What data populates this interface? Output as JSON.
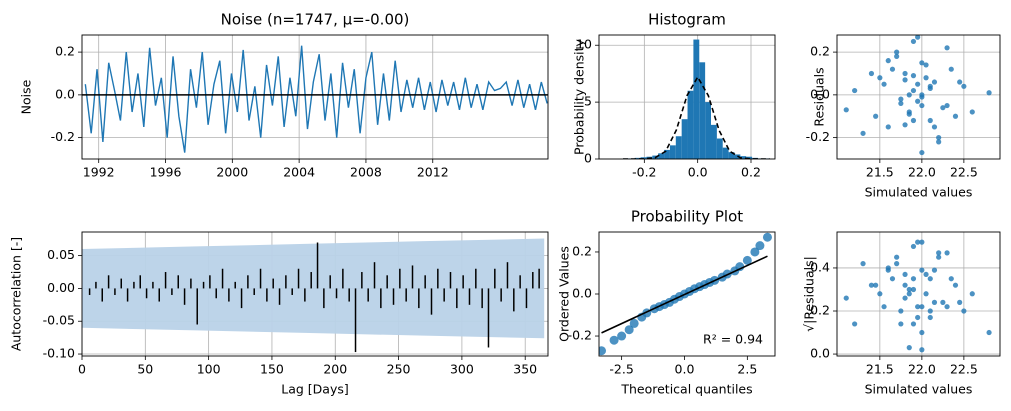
{
  "chart_data": [
    {
      "type": "line",
      "title": "Noise (n=1747, μ=-0.00)",
      "ylabel": "Noise",
      "color": "#1f77b4",
      "grid": true,
      "x": [
        1991.2,
        1991.55,
        1991.9,
        1992.25,
        1992.6,
        1992.95,
        1993.3,
        1993.65,
        1994.0,
        1994.35,
        1994.7,
        1995.05,
        1995.4,
        1995.75,
        1996.1,
        1996.45,
        1996.8,
        1997.15,
        1997.5,
        1997.85,
        1998.2,
        1998.55,
        1998.9,
        1999.25,
        1999.6,
        1999.95,
        2000.3,
        2000.65,
        2001.0,
        2001.35,
        2001.7,
        2002.05,
        2002.4,
        2002.75,
        2003.1,
        2003.45,
        2003.8,
        2004.15,
        2004.5,
        2004.85,
        2005.2,
        2005.55,
        2005.9,
        2006.25,
        2006.6,
        2006.95,
        2007.3,
        2007.65,
        2008.0,
        2008.35,
        2008.7,
        2009.05,
        2009.4,
        2009.75,
        2010.1,
        2010.45,
        2010.8,
        2011.15,
        2011.5,
        2011.85,
        2012.2,
        2012.55,
        2012.9,
        2013.25,
        2013.6,
        2013.95,
        2014.3,
        2014.65,
        2015.0,
        2015.35,
        2015.7,
        2016.05,
        2016.4,
        2016.75,
        2017.1,
        2017.45,
        2017.8,
        2018.15,
        2018.5,
        2018.85
      ],
      "values": [
        0.05,
        -0.18,
        0.12,
        -0.22,
        0.15,
        0.02,
        -0.12,
        0.2,
        -0.08,
        0.1,
        -0.15,
        0.22,
        -0.05,
        0.08,
        -0.2,
        0.18,
        -0.1,
        -0.27,
        0.12,
        -0.06,
        0.2,
        -0.14,
        0.05,
        0.16,
        -0.18,
        0.1,
        -0.08,
        0.21,
        -0.12,
        0.04,
        -0.2,
        0.14,
        -0.05,
        0.18,
        -0.15,
        0.08,
        -0.1,
        0.23,
        -0.16,
        0.06,
        0.19,
        -0.12,
        0.1,
        -0.2,
        0.15,
        -0.06,
        0.12,
        -0.18,
        0.08,
        0.2,
        -0.14,
        0.1,
        -0.12,
        0.16,
        -0.08,
        0.07,
        -0.06,
        0.08,
        -0.07,
        0.06,
        -0.08,
        0.07,
        -0.05,
        0.06,
        -0.07,
        0.08,
        -0.06,
        0.05,
        -0.07,
        0.06,
        0.02,
        0.03,
        0.06,
        -0.05,
        0.07,
        -0.06,
        0.05,
        -0.07,
        0.06,
        -0.04
      ],
      "hline": 0,
      "hline_color": "#000000",
      "xlim": [
        1991,
        2018.9
      ],
      "xticks": [
        1992,
        1996,
        2000,
        2004,
        2008,
        2012
      ],
      "ylim": [
        -0.3,
        0.28
      ],
      "yticks": [
        -0.2,
        {
          "value": 0,
          "label": "0.0"
        },
        0.2
      ]
    },
    {
      "type": "histogram",
      "title": "Histogram",
      "ylabel": "Probability density",
      "color": "#1f77b4",
      "grid": true,
      "bins": [
        -0.28,
        -0.258,
        -0.236,
        -0.214,
        -0.192,
        -0.17,
        -0.148,
        -0.126,
        -0.104,
        -0.082,
        -0.06,
        -0.038,
        -0.016,
        0.006,
        0.028,
        0.05,
        0.072,
        0.094,
        0.116,
        0.138,
        0.16,
        0.182,
        0.204,
        0.226,
        0.248,
        0.27
      ],
      "values": [
        0.05,
        0.05,
        0.1,
        0.15,
        0.2,
        0.3,
        0.5,
        0.8,
        1.2,
        2.0,
        3.5,
        6.0,
        10.5,
        8.5,
        5.0,
        3.0,
        1.8,
        1.0,
        0.6,
        0.4,
        0.25,
        0.2,
        0.1,
        0.05,
        0.05
      ],
      "curve": {
        "color": "#000000",
        "x": [
          -0.28,
          -0.24,
          -0.2,
          -0.16,
          -0.12,
          -0.08,
          -0.04,
          0,
          0.04,
          0.08,
          0.12,
          0.16,
          0.2,
          0.24,
          0.27
        ],
        "values": [
          0.0,
          0.0,
          0.01,
          0.11,
          0.68,
          2.54,
          5.57,
          7.2,
          5.57,
          2.54,
          0.68,
          0.11,
          0.01,
          0.0,
          0.0
        ]
      },
      "xlim": [
        -0.37,
        0.29
      ],
      "xticks": [
        -0.2,
        {
          "value": 0,
          "label": "0.0"
        },
        0.2
      ],
      "ylim": [
        0,
        10.9
      ],
      "yticks": [
        0,
        5,
        10
      ]
    },
    {
      "type": "scatter",
      "xlabel": "Simulated values",
      "ylabel": "Residuals",
      "color": "#1f77b4",
      "grid": true,
      "x": [
        21.9,
        22.0,
        21.8,
        22.1,
        21.7,
        22.2,
        21.95,
        21.85,
        22.05,
        21.6,
        22.3,
        21.5,
        22.4,
        21.75,
        22.15,
        21.9,
        22.0,
        21.65,
        22.25,
        21.4,
        22.5,
        21.3,
        22.6,
        21.2,
        22.8,
        21.1,
        21.85,
        22.1,
        21.95,
        22.0,
        21.8,
        22.05,
        21.7,
        22.2,
        21.9,
        22.35,
        21.55,
        21.45,
        22.45,
        22.0,
        21.75,
        22.1,
        21.9,
        21.85,
        22.15,
        21.6,
        22.3,
        21.95,
        22.0,
        21.8
      ],
      "values": [
        0.02,
        -0.05,
        0.1,
        -0.12,
        0.18,
        -0.2,
        0.05,
        -0.08,
        0.14,
        -0.15,
        0.22,
        0.08,
        -0.1,
        -0.02,
        0.06,
        0.25,
        -0.27,
        0.12,
        -0.06,
        0.1,
        0.04,
        -0.18,
        -0.08,
        0.02,
        0.01,
        -0.07,
        0.0,
        0.03,
        -0.03,
        0.15,
        -0.14,
        0.08,
        0.2,
        -0.22,
        -0.12,
        0.12,
        0.05,
        -0.1,
        0.06,
        0.0,
        -0.04,
        0.04,
        0.09,
        -0.09,
        -0.15,
        0.16,
        -0.05,
        0.27,
        -0.01,
        0.07
      ],
      "xlim": [
        20.99,
        22.93
      ],
      "xticks": [
        21.5,
        {
          "value": 22,
          "label": "22.0"
        },
        22.5
      ],
      "ylim": [
        -0.3,
        0.28
      ],
      "yticks": [
        -0.2,
        {
          "value": 0,
          "label": "0.0"
        },
        0.2
      ]
    },
    {
      "type": "bar",
      "xlabel": "Lag [Days]",
      "ylabel": "Autocorrelation [-]",
      "color": "#000000",
      "grid": true,
      "band": {
        "color": "#b9d2e8",
        "x": [
          0,
          90,
          180,
          270,
          365
        ],
        "upper": [
          0.06,
          0.064,
          0.068,
          0.072,
          0.076
        ],
        "lower": [
          -0.06,
          -0.064,
          -0.068,
          -0.072,
          -0.076
        ]
      },
      "x": [
        1,
        6,
        11,
        16,
        21,
        26,
        31,
        36,
        41,
        46,
        51,
        56,
        61,
        66,
        71,
        76,
        81,
        86,
        91,
        96,
        101,
        106,
        111,
        116,
        121,
        126,
        131,
        136,
        141,
        146,
        151,
        156,
        161,
        166,
        171,
        176,
        181,
        186,
        191,
        196,
        201,
        206,
        211,
        216,
        221,
        226,
        231,
        236,
        241,
        246,
        251,
        256,
        261,
        266,
        271,
        276,
        281,
        286,
        291,
        296,
        301,
        306,
        311,
        316,
        321,
        326,
        331,
        336,
        341,
        346,
        351,
        356,
        361
      ],
      "values": [
        0.0,
        -0.01,
        0.01,
        -0.02,
        0.02,
        -0.01,
        0.015,
        -0.02,
        0.01,
        0.02,
        -0.015,
        0.01,
        -0.02,
        0.025,
        -0.01,
        0.02,
        -0.025,
        0.015,
        -0.055,
        0.01,
        0.02,
        -0.015,
        0.03,
        -0.02,
        0.01,
        -0.03,
        0.02,
        -0.01,
        0.03,
        -0.02,
        0.015,
        -0.025,
        0.02,
        -0.01,
        0.03,
        -0.02,
        0.025,
        0.07,
        -0.03,
        0.02,
        -0.015,
        0.03,
        -0.02,
        -0.097,
        0.025,
        -0.02,
        0.04,
        -0.03,
        0.02,
        -0.025,
        0.03,
        -0.02,
        0.035,
        -0.03,
        0.02,
        -0.04,
        0.03,
        -0.02,
        0.025,
        -0.03,
        0.02,
        -0.025,
        0.03,
        -0.03,
        -0.09,
        0.03,
        -0.02,
        0.04,
        -0.035,
        0.02,
        -0.03,
        0.025,
        0.03
      ],
      "xlim": [
        0,
        368
      ],
      "xticks": [
        0,
        50,
        100,
        150,
        200,
        250,
        300,
        350
      ],
      "ylim": [
        -0.103,
        0.086
      ],
      "yticks": [
        {
          "value": -0.1,
          "label": "-0.10"
        },
        -0.05,
        {
          "value": 0,
          "label": "0.00"
        },
        0.05
      ]
    },
    {
      "type": "scatter",
      "title": "Probability Plot",
      "xlabel": "Theoretical quantiles",
      "ylabel": "Ordered Values",
      "color": "#1f77b4",
      "grid": false,
      "marker_size": 4.5,
      "annotation": "R² = 0.94",
      "x": [
        -3.3,
        -2.8,
        -2.5,
        -2.2,
        -2.0,
        -1.7,
        -1.5,
        -1.2,
        -1.0,
        -0.8,
        -0.6,
        -0.4,
        -0.2,
        0,
        0.2,
        0.4,
        0.6,
        0.8,
        1.0,
        1.2,
        1.5,
        1.7,
        2.0,
        2.2,
        2.5,
        2.8,
        3.0,
        3.3
      ],
      "values": [
        -0.27,
        -0.22,
        -0.2,
        -0.17,
        -0.14,
        -0.11,
        -0.09,
        -0.07,
        -0.06,
        -0.05,
        -0.04,
        -0.025,
        -0.012,
        0.0,
        0.012,
        0.025,
        0.035,
        0.045,
        0.055,
        0.065,
        0.08,
        0.095,
        0.11,
        0.13,
        0.16,
        0.2,
        0.23,
        0.27
      ],
      "fit": {
        "color": "#000000",
        "x": [
          -3.3,
          3.3
        ],
        "values": [
          -0.185,
          0.18
        ]
      },
      "xlim": [
        -3.4,
        3.6
      ],
      "xticks": [
        -2.5,
        {
          "value": 0,
          "label": "0.0"
        },
        2.5
      ],
      "ylim": [
        -0.295,
        0.295
      ],
      "yticks": [
        -0.2,
        {
          "value": 0,
          "label": "0.0"
        },
        0.2
      ]
    },
    {
      "type": "scatter",
      "xlabel": "Simulated values",
      "ylabel": "√|Residuals|",
      "color": "#1f77b4",
      "grid": true,
      "x": [
        21.9,
        22.0,
        21.8,
        22.1,
        21.7,
        22.2,
        21.95,
        21.85,
        22.05,
        21.6,
        22.3,
        21.5,
        22.4,
        21.75,
        22.15,
        21.9,
        22.0,
        21.65,
        22.25,
        21.4,
        22.5,
        21.3,
        22.6,
        21.2,
        22.8,
        21.1,
        21.85,
        22.1,
        21.95,
        22.0,
        21.8,
        22.05,
        21.7,
        22.2,
        21.9,
        22.35,
        21.55,
        21.45,
        22.45,
        22.0,
        21.75,
        22.1,
        21.9,
        21.85,
        22.15,
        21.6,
        22.3,
        21.95,
        22.0,
        21.8
      ],
      "values": [
        0.14,
        0.22,
        0.32,
        0.35,
        0.42,
        0.45,
        0.22,
        0.28,
        0.37,
        0.39,
        0.47,
        0.28,
        0.32,
        0.14,
        0.24,
        0.5,
        0.52,
        0.35,
        0.24,
        0.32,
        0.2,
        0.42,
        0.28,
        0.14,
        0.1,
        0.26,
        0.03,
        0.17,
        0.17,
        0.39,
        0.37,
        0.28,
        0.45,
        0.47,
        0.35,
        0.35,
        0.22,
        0.32,
        0.24,
        0.02,
        0.2,
        0.2,
        0.3,
        0.3,
        0.39,
        0.4,
        0.22,
        0.52,
        0.1,
        0.26
      ],
      "xlim": [
        20.99,
        22.93
      ],
      "xticks": [
        21.5,
        {
          "value": 22,
          "label": "22.0"
        },
        22.5
      ],
      "ylim": [
        -0.009,
        0.567
      ],
      "yticks": [
        {
          "value": 0,
          "label": "0.0"
        },
        0.2,
        0.4
      ]
    }
  ]
}
